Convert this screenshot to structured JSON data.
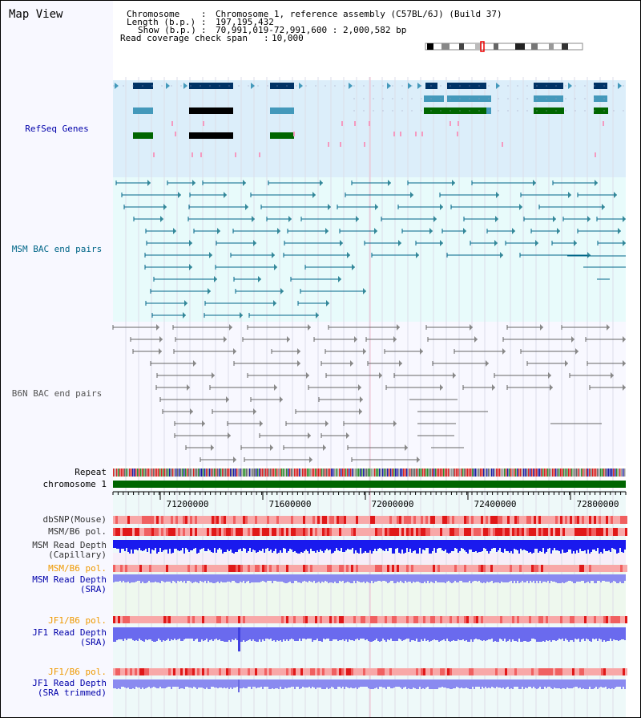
{
  "title": "Map View",
  "info": {
    "chromosome_key": "Chromosome",
    "chromosome_value": "Chromosome 1, reference assembly (C57BL/6J) (Build 37)",
    "length_key": "Length (b.p.)",
    "length_value": "197,195,432",
    "show_key": "Show (b.p.)",
    "show_value": "70,991,019-72,991,600 : 2,000,582 bp",
    "coverage_key": "Read coverage check span",
    "coverage_value": "10,000"
  },
  "tracks": {
    "refseq": "RefSeq Genes",
    "msm_bac": "MSM BAC end pairs",
    "b6n_bac": "B6N BAC end pairs",
    "repeat": "Repeat",
    "chromosome": "chromosome 1",
    "dbsnp": "dbSNP(Mouse)",
    "msm_b6_pol_1": "MSM/B6 pol.",
    "msm_read_depth_cap_1": "MSM Read Depth",
    "msm_read_depth_cap_2": "(Capillary)",
    "msm_b6_pol_2": "MSM/B6 pol.",
    "msm_read_depth_sra_1": "MSM Read Depth",
    "msm_read_depth_sra_2": "(SRA)",
    "jf1_b6_pol_1": "JF1/B6 pol.",
    "jf1_read_depth_sra_1": "JF1 Read Depth",
    "jf1_read_depth_sra_2": "(SRA)",
    "jf1_b6_pol_2": "JF1/B6 pol.",
    "jf1_read_depth_trim_1": "JF1 Read Depth",
    "jf1_read_depth_trim_2": "(SRA trimmed)"
  },
  "axis": {
    "ticks": [
      "71200000",
      "71600000",
      "72000000",
      "72400000",
      "72800000"
    ]
  },
  "colors": {
    "refseq_dark": "#003366",
    "refseq_mid": "#4499bb",
    "refseq_green": "#006600",
    "msm_line": "#006688",
    "b6n_line": "#666666",
    "chromosome": "#006600",
    "label_blue": "#0000aa",
    "label_orange": "#ee9900",
    "label_teal": "#006688"
  }
}
